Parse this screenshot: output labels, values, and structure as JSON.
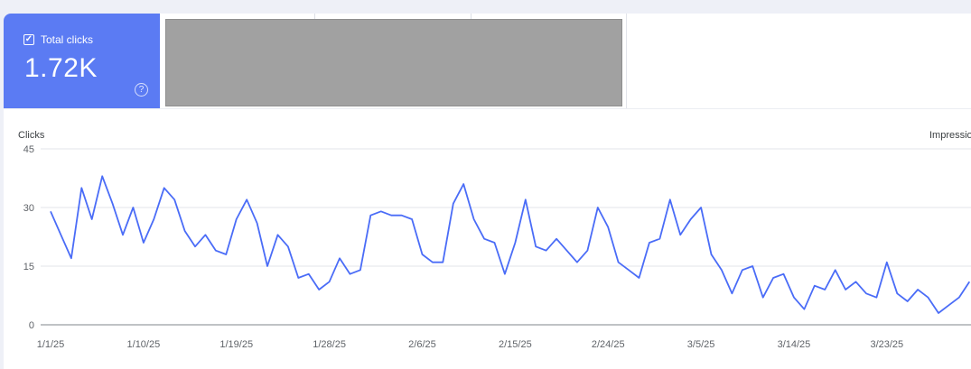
{
  "metric": {
    "label": "Total clicks",
    "value": "1.72K",
    "checked": true,
    "help_icon": "question-mark-circle-icon",
    "color": "#5b7bf3"
  },
  "chart_data": {
    "type": "line",
    "ylabel": "Clicks",
    "y2label": "Impressio",
    "ylim": [
      0,
      45
    ],
    "y_ticks": [
      "0",
      "15",
      "30",
      "45"
    ],
    "x_ticks": [
      "1/1/25",
      "1/10/25",
      "1/19/25",
      "1/28/25",
      "2/6/25",
      "2/15/25",
      "2/24/25",
      "3/5/25",
      "3/14/25",
      "3/23/25"
    ],
    "grid": true,
    "line_color": "#4a6cf7",
    "x_start": "1/1/25",
    "series": [
      {
        "values": [
          29,
          23,
          17,
          35,
          27,
          38,
          31,
          23,
          30,
          21,
          27,
          35,
          32,
          24,
          20,
          23,
          19,
          18,
          27,
          32,
          26,
          15,
          23,
          20,
          12,
          13,
          9,
          11,
          17,
          13,
          14,
          28,
          29,
          28,
          28,
          27,
          18,
          16,
          16,
          31,
          36,
          27,
          22,
          21,
          13,
          21,
          32,
          20,
          19,
          22,
          19,
          16,
          19,
          30,
          25,
          16,
          14,
          12,
          21,
          22,
          32,
          23,
          27,
          30,
          18,
          14,
          8,
          14,
          15,
          7,
          12,
          13,
          7,
          4,
          10,
          9,
          14,
          9,
          11,
          8,
          7,
          16,
          8,
          6,
          9,
          7,
          3,
          5,
          7,
          11
        ]
      }
    ]
  }
}
